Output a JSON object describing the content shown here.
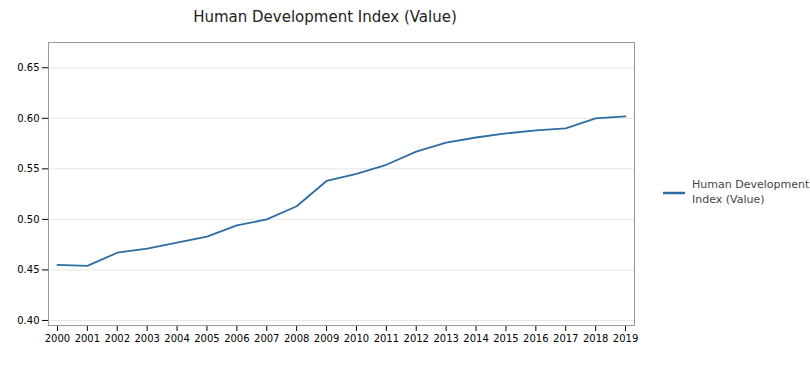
{
  "chart_data": {
    "type": "line",
    "title": "Human Development Index (Value)",
    "x": [
      2000,
      2001,
      2002,
      2003,
      2004,
      2005,
      2006,
      2007,
      2008,
      2009,
      2010,
      2011,
      2012,
      2013,
      2014,
      2015,
      2016,
      2017,
      2018,
      2019
    ],
    "series": [
      {
        "name": "Human Development\nIndex (Value)",
        "color": "#2e6da4",
        "values": [
          0.455,
          0.454,
          0.467,
          0.471,
          0.477,
          0.483,
          0.494,
          0.5,
          0.513,
          0.538,
          0.545,
          0.554,
          0.567,
          0.576,
          0.581,
          0.585,
          0.588,
          0.59,
          0.6,
          0.602
        ]
      }
    ],
    "xlim": [
      1999.7,
      2019.3
    ],
    "xticks": [
      2000,
      2001,
      2002,
      2003,
      2004,
      2005,
      2006,
      2007,
      2008,
      2009,
      2010,
      2011,
      2012,
      2013,
      2014,
      2015,
      2016,
      2017,
      2018,
      2019
    ],
    "ylim": [
      0.395,
      0.675
    ],
    "yticks": [
      {
        "value": 0.4,
        "label": "0.40"
      },
      0.45,
      {
        "value": 0.5,
        "label": "0.50"
      },
      0.55,
      {
        "value": 0.6,
        "label": "0.60"
      },
      0.65
    ],
    "grid": true,
    "legend": "right"
  }
}
